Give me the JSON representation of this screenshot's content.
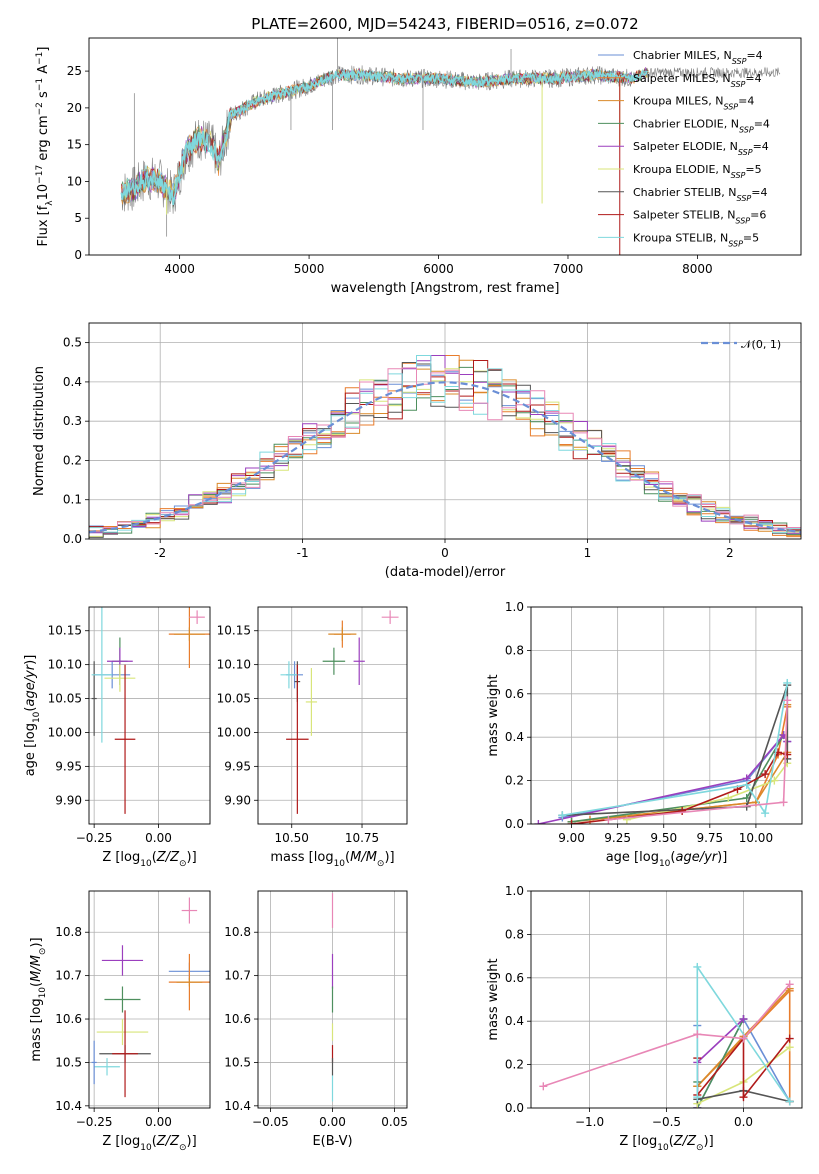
{
  "figure": {
    "colors": [
      "#6A8FD6",
      "#E87D2D",
      "#DA8A2A",
      "#4E8F5E",
      "#9B3FBE",
      "#D8E57A",
      "#555555",
      "#B01A1A",
      "#7FD8DD",
      "#E887B6"
    ]
  },
  "chart_data": [
    {
      "id": "spectrum",
      "type": "line",
      "title": "PLATE=2600, MJD=54243, FIBERID=0516, z=0.072",
      "xlabel": "wavelength [Angstrom, rest frame]",
      "ylabel": "Flux [f_λ 10^-17 erg cm^-2 s^-1 A^-1]",
      "xlim": [
        3300,
        8800
      ],
      "ylim": [
        0,
        29.5
      ],
      "xticks": [
        4000,
        5000,
        6000,
        7000,
        8000
      ],
      "yticks": [
        0,
        5,
        10,
        15,
        20,
        25
      ],
      "grid": false,
      "legend": "upper-right",
      "legend_entries": [
        {
          "label": "Chabrier MILES, N",
          "sub": "SSP",
          "tail": "=4",
          "color": "#6A8FD6"
        },
        {
          "label": "Salpeter MILES, N",
          "sub": "SSP",
          "tail": "=4",
          "color": "#E87D2D"
        },
        {
          "label": "Kroupa MILES, N",
          "sub": "SSP",
          "tail": "=4",
          "color": "#DA8A2A"
        },
        {
          "label": "Chabrier ELODIE, N",
          "sub": "SSP",
          "tail": "=4",
          "color": "#4E8F5E"
        },
        {
          "label": "Salpeter ELODIE, N",
          "sub": "SSP",
          "tail": "=4",
          "color": "#9B3FBE"
        },
        {
          "label": "Kroupa ELODIE, N",
          "sub": "SSP",
          "tail": "=5",
          "color": "#D8E57A"
        },
        {
          "label": "Chabrier STELIB, N",
          "sub": "SSP",
          "tail": "=4",
          "color": "#555555"
        },
        {
          "label": "Salpeter STELIB, N",
          "sub": "SSP",
          "tail": "=6",
          "color": "#B01A1A"
        },
        {
          "label": "Kroupa STELIB, N",
          "sub": "SSP",
          "tail": "=5",
          "color": "#7FD8DD"
        }
      ],
      "continuum": [
        [
          3550,
          8.5
        ],
        [
          3650,
          9
        ],
        [
          3750,
          10.5
        ],
        [
          3850,
          10
        ],
        [
          3950,
          8
        ],
        [
          4050,
          14
        ],
        [
          4150,
          16
        ],
        [
          4250,
          15
        ],
        [
          4300,
          12.5
        ],
        [
          4400,
          19
        ],
        [
          4600,
          21
        ],
        [
          4800,
          22
        ],
        [
          5000,
          23
        ],
        [
          5200,
          24.5
        ],
        [
          5400,
          24.5
        ],
        [
          5700,
          24
        ],
        [
          6000,
          24
        ],
        [
          6300,
          23.5
        ],
        [
          6600,
          24
        ],
        [
          6900,
          24
        ],
        [
          7200,
          24.5
        ],
        [
          7500,
          24
        ],
        [
          7600,
          24.8
        ]
      ],
      "spikes": [
        [
          5220,
          30
        ],
        [
          3650,
          22
        ],
        [
          3900,
          2.5
        ],
        [
          5180,
          17
        ],
        [
          5880,
          17
        ],
        [
          6560,
          28
        ],
        [
          4860,
          17
        ]
      ],
      "drops": [
        [
          3900,
          5.5
        ],
        [
          6800,
          7
        ],
        [
          7400,
          15
        ],
        [
          7400,
          0
        ]
      ]
    },
    {
      "id": "residual-histogram",
      "type": "bar",
      "xlabel": "(data-model)/error",
      "ylabel": "Normed distribution",
      "xlim": [
        -2.5,
        2.5
      ],
      "ylim": [
        0,
        0.55
      ],
      "xticks": [
        -2,
        -1,
        0,
        1,
        2
      ],
      "yticks": [
        0.0,
        0.1,
        0.2,
        0.3,
        0.4,
        0.5
      ],
      "ytick_labels": [
        "0.0",
        "0.1",
        "0.2",
        "0.3",
        "0.4",
        "0.5"
      ],
      "grid": true,
      "legend": "upper-right",
      "legend_label": "𝒩(0, 1)",
      "bin_edges": [
        -2.5,
        2.5
      ],
      "bin_width": 0.1,
      "normal": {
        "mean": 0,
        "sd": 1,
        "color": "#6A8FD6"
      }
    },
    {
      "id": "age-vs-Z",
      "type": "scatter",
      "xlabel": "Z [log10(Z/Z⊙)]",
      "ylabel": "age [log10(age/yr)]",
      "xlim": [
        -0.27,
        0.2
      ],
      "ylim": [
        9.865,
        10.185
      ],
      "xticks": [
        -0.25,
        0.0
      ],
      "xtick_labels": [
        "−0.25",
        "0.00"
      ],
      "yticks": [
        9.9,
        9.95,
        10.0,
        10.05,
        10.1,
        10.15
      ],
      "ytick_labels": [
        "9.90",
        "9.95",
        "10.00",
        "10.05",
        "10.10",
        "10.15"
      ],
      "grid": true,
      "points": [
        {
          "x": -0.18,
          "y": 10.085,
          "xerr": 0.07,
          "yerr": 0.02,
          "color": "#6A8FD6"
        },
        {
          "x": 0.12,
          "y": 10.145,
          "xerr": 0.08,
          "yerr": 0.05,
          "color": "#E87D2D"
        },
        {
          "x": 0.12,
          "y": 10.145,
          "xerr": 0.06,
          "yerr": 0.01,
          "color": "#DA8A2A"
        },
        {
          "x": -0.15,
          "y": 10.105,
          "xerr": 0.03,
          "yerr": 0.035,
          "color": "#4E8F5E"
        },
        {
          "x": -0.15,
          "y": 10.105,
          "xerr": 0.05,
          "yerr": 0.02,
          "color": "#9B3FBE"
        },
        {
          "x": -0.15,
          "y": 10.08,
          "xerr": 0.06,
          "yerr": 0.02,
          "color": "#D8E57A"
        },
        {
          "x": -0.25,
          "y": 10.05,
          "xerr": 0.01,
          "yerr": 0.055,
          "color": "#555555"
        },
        {
          "x": -0.13,
          "y": 9.99,
          "xerr": 0.04,
          "yerr": 0.11,
          "color": "#B01A1A"
        },
        {
          "x": -0.22,
          "y": 10.085,
          "xerr": 0.04,
          "yerr": 0.1,
          "color": "#7FD8DD"
        },
        {
          "x": 0.15,
          "y": 10.17,
          "xerr": 0.03,
          "yerr": 0.01,
          "color": "#E887B6"
        }
      ]
    },
    {
      "id": "age-vs-mass",
      "type": "scatter",
      "xlabel": "mass [log10(M/M⊙)]",
      "ylabel": "",
      "xlim": [
        10.38,
        10.91
      ],
      "ylim": [
        9.865,
        10.185
      ],
      "xticks": [
        10.5,
        10.75
      ],
      "xtick_labels": [
        "10.50",
        "10.75"
      ],
      "yticks": [
        9.9,
        9.95,
        10.0,
        10.05,
        10.1,
        10.15
      ],
      "ytick_labels": [
        "9.90",
        "9.95",
        "10.00",
        "10.05",
        "10.10",
        "10.15"
      ],
      "grid": true,
      "points": [
        {
          "x": 10.51,
          "y": 10.085,
          "xerr": 0.03,
          "yerr": 0.02,
          "color": "#6A8FD6"
        },
        {
          "x": 10.68,
          "y": 10.145,
          "xerr": 0.03,
          "yerr": 0.02,
          "color": "#E87D2D"
        },
        {
          "x": 10.68,
          "y": 10.145,
          "xerr": 0.05,
          "yerr": 0.01,
          "color": "#DA8A2A"
        },
        {
          "x": 10.65,
          "y": 10.105,
          "xerr": 0.04,
          "yerr": 0.02,
          "color": "#4E8F5E"
        },
        {
          "x": 10.74,
          "y": 10.105,
          "xerr": 0.02,
          "yerr": 0.035,
          "color": "#9B3FBE"
        },
        {
          "x": 10.57,
          "y": 10.045,
          "xerr": 0.02,
          "yerr": 0.05,
          "color": "#D8E57A"
        },
        {
          "x": 10.52,
          "y": 10.075,
          "xerr": 0.01,
          "yerr": 0.03,
          "color": "#555555"
        },
        {
          "x": 10.52,
          "y": 9.99,
          "xerr": 0.04,
          "yerr": 0.11,
          "color": "#B01A1A"
        },
        {
          "x": 10.49,
          "y": 10.085,
          "xerr": 0.03,
          "yerr": 0.02,
          "color": "#7FD8DD"
        },
        {
          "x": 10.85,
          "y": 10.17,
          "xerr": 0.03,
          "yerr": 0.01,
          "color": "#E887B6"
        }
      ]
    },
    {
      "id": "mass-weight-vs-age",
      "type": "line",
      "xlabel": "age [log10(age/yr)]",
      "ylabel": "mass weight",
      "xlim": [
        8.78,
        10.25
      ],
      "ylim": [
        0,
        1
      ],
      "xticks": [
        9.0,
        9.25,
        9.5,
        9.75,
        10.0
      ],
      "xtick_labels": [
        "9.00",
        "9.25",
        "9.50",
        "9.75",
        "10.00"
      ],
      "yticks": [
        0,
        0.2,
        0.4,
        0.6,
        0.8,
        1.0
      ],
      "ytick_labels": [
        "0.0",
        "0.2",
        "0.4",
        "0.6",
        "0.8",
        "1.0"
      ],
      "grid": true,
      "series": [
        {
          "color": "#6A8FD6",
          "x": [
            8.95,
            9.95,
            10.15,
            10.17
          ],
          "y": [
            0.03,
            0.2,
            0.41,
            0.38
          ]
        },
        {
          "color": "#E87D2D",
          "x": [
            9.1,
            10.0,
            10.12,
            10.17
          ],
          "y": [
            0.02,
            0.1,
            0.32,
            0.54
          ]
        },
        {
          "color": "#DA8A2A",
          "x": [
            9.0,
            10.0,
            10.17,
            10.17
          ],
          "y": [
            0.01,
            0.1,
            0.33,
            0.55
          ]
        },
        {
          "color": "#4E8F5E",
          "x": [
            9.0,
            9.95,
            10.15
          ],
          "y": [
            0.01,
            0.12,
            0.41
          ]
        },
        {
          "color": "#9B3FBE",
          "x": [
            8.82,
            9.95,
            10.15,
            10.17
          ],
          "y": [
            0.0,
            0.21,
            0.41,
            0.38
          ]
        },
        {
          "color": "#D8E57A",
          "x": [
            9.3,
            9.85,
            10.1,
            10.17
          ],
          "y": [
            0.02,
            0.12,
            0.2,
            0.28
          ]
        },
        {
          "color": "#555555",
          "x": [
            8.95,
            9.95,
            10.17,
            10.17
          ],
          "y": [
            0.04,
            0.08,
            0.64,
            0.3
          ]
        },
        {
          "color": "#B01A1A",
          "x": [
            9.0,
            9.6,
            9.9,
            10.05,
            10.12,
            10.17
          ],
          "y": [
            0.0,
            0.06,
            0.16,
            0.23,
            0.33,
            0.32
          ]
        },
        {
          "color": "#7FD8DD",
          "x": [
            8.95,
            9.95,
            10.05,
            10.17
          ],
          "y": [
            0.04,
            0.18,
            0.05,
            0.65
          ]
        },
        {
          "color": "#E887B6",
          "x": [
            9.2,
            10.15,
            10.17
          ],
          "y": [
            0.02,
            0.1,
            0.57
          ]
        }
      ]
    },
    {
      "id": "mass-vs-Z",
      "type": "scatter",
      "xlabel": "Z [log10(Z/Z⊙)]",
      "ylabel": "mass [log10(M/M⊙)]",
      "xlim": [
        -0.27,
        0.2
      ],
      "ylim": [
        10.395,
        10.895
      ],
      "xticks": [
        -0.25,
        0.0
      ],
      "xtick_labels": [
        "−0.25",
        "0.00"
      ],
      "yticks": [
        10.4,
        10.5,
        10.6,
        10.7,
        10.8
      ],
      "ytick_labels": [
        "10.4",
        "10.5",
        "10.6",
        "10.7",
        "10.8"
      ],
      "grid": true,
      "points": [
        {
          "x": -0.2,
          "y": 10.49,
          "xerr": 0.05,
          "yerr": 0.02,
          "color": "#7FD8DD"
        },
        {
          "x": 0.12,
          "y": 10.71,
          "xerr": 0.08,
          "yerr": 0.02,
          "color": "#6A8FD6"
        },
        {
          "x": 0.12,
          "y": 10.685,
          "xerr": 0.08,
          "yerr": 0.065,
          "color": "#E87D2D"
        },
        {
          "x": 0.12,
          "y": 10.685,
          "xerr": 0.05,
          "yerr": 0.01,
          "color": "#DA8A2A"
        },
        {
          "x": -0.14,
          "y": 10.645,
          "xerr": 0.07,
          "yerr": 0.03,
          "color": "#4E8F5E"
        },
        {
          "x": -0.14,
          "y": 10.735,
          "xerr": 0.08,
          "yerr": 0.035,
          "color": "#9B3FBE"
        },
        {
          "x": -0.14,
          "y": 10.57,
          "xerr": 0.1,
          "yerr": 0.03,
          "color": "#D8E57A"
        },
        {
          "x": -0.25,
          "y": 10.5,
          "xerr": 0.01,
          "yerr": 0.05,
          "color": "#6A8FD6"
        },
        {
          "x": -0.13,
          "y": 10.52,
          "xerr": 0.1,
          "yerr": 0.02,
          "color": "#555555"
        },
        {
          "x": -0.13,
          "y": 10.52,
          "xerr": 0.05,
          "yerr": 0.1,
          "color": "#B01A1A"
        },
        {
          "x": 0.12,
          "y": 10.85,
          "xerr": 0.03,
          "yerr": 0.03,
          "color": "#E887B6"
        }
      ]
    },
    {
      "id": "mass-vs-EBV",
      "type": "scatter",
      "xlabel": "E(B-V)",
      "ylabel": "",
      "xlim": [
        -0.06,
        0.06
      ],
      "ylim": [
        10.395,
        10.895
      ],
      "xticks": [
        -0.05,
        0.0,
        0.05
      ],
      "xtick_labels": [
        "−0.05",
        "0.00",
        "0.05"
      ],
      "yticks": [
        10.4,
        10.5,
        10.6,
        10.7,
        10.8
      ],
      "ytick_labels": [
        "10.4",
        "10.5",
        "10.6",
        "10.7",
        "10.8"
      ],
      "grid": true,
      "points": [
        {
          "x": 0.0,
          "y": 10.71,
          "yerr": 0.04,
          "color": "#9B3FBE"
        },
        {
          "x": 0.0,
          "y": 10.645,
          "yerr": 0.03,
          "color": "#4E8F5E"
        },
        {
          "x": 0.0,
          "y": 10.57,
          "yerr": 0.02,
          "color": "#D8E57A"
        },
        {
          "x": 0.0,
          "y": 10.52,
          "yerr": 0.02,
          "color": "#B01A1A"
        },
        {
          "x": 0.0,
          "y": 10.49,
          "yerr": 0.02,
          "color": "#555555"
        },
        {
          "x": 0.0,
          "y": 10.44,
          "yerr": 0.03,
          "color": "#7FD8DD"
        },
        {
          "x": 0.0,
          "y": 10.85,
          "yerr": 0.04,
          "color": "#E887B6"
        }
      ]
    },
    {
      "id": "mass-weight-vs-Z",
      "type": "line",
      "xlabel": "Z [log10(Z/Z⊙)]",
      "ylabel": "mass weight",
      "xlim": [
        -1.38,
        0.38
      ],
      "ylim": [
        0,
        1
      ],
      "xticks": [
        -1.0,
        -0.5,
        0.0
      ],
      "xtick_labels": [
        "−1.0",
        "−0.5",
        "0.0"
      ],
      "yticks": [
        0,
        0.2,
        0.4,
        0.6,
        0.8,
        1.0
      ],
      "ytick_labels": [
        "0.0",
        "0.2",
        "0.4",
        "0.6",
        "0.8",
        "1.0"
      ],
      "grid": true,
      "series": [
        {
          "color": "#6A8FD6",
          "x": [
            -0.3,
            -0.3,
            0.0,
            0.3
          ],
          "y": [
            0.38,
            0.0,
            0.41,
            0.03
          ]
        },
        {
          "color": "#E87D2D",
          "x": [
            -0.3,
            0.0,
            0.3,
            0.3
          ],
          "y": [
            0.1,
            0.32,
            0.54,
            0.03
          ]
        },
        {
          "color": "#DA8A2A",
          "x": [
            -0.3,
            0.0,
            0.3
          ],
          "y": [
            0.1,
            0.33,
            0.55
          ]
        },
        {
          "color": "#4E8F5E",
          "x": [
            -0.3,
            -0.3,
            0.0
          ],
          "y": [
            0.12,
            0.0,
            0.41
          ]
        },
        {
          "color": "#9B3FBE",
          "x": [
            -0.3,
            -0.3,
            0.0
          ],
          "y": [
            0.0,
            0.21,
            0.41
          ]
        },
        {
          "color": "#D8E57A",
          "x": [
            -0.3,
            0.0,
            0.3
          ],
          "y": [
            0.02,
            0.12,
            0.28
          ]
        },
        {
          "color": "#555555",
          "x": [
            -0.3,
            0.0,
            0.3
          ],
          "y": [
            0.04,
            0.08,
            0.03
          ]
        },
        {
          "color": "#B01A1A",
          "x": [
            -0.3,
            -0.3,
            0.0,
            0.0,
            0.3
          ],
          "y": [
            0.23,
            0.06,
            0.32,
            0.05,
            0.32
          ]
        },
        {
          "color": "#7FD8DD",
          "x": [
            -0.3,
            -0.3,
            0.3
          ],
          "y": [
            0.05,
            0.65,
            0.03
          ]
        },
        {
          "color": "#E887B6",
          "x": [
            -1.3,
            -0.3,
            0.0,
            0.3
          ],
          "y": [
            0.1,
            0.34,
            0.32,
            0.57
          ]
        }
      ]
    }
  ]
}
